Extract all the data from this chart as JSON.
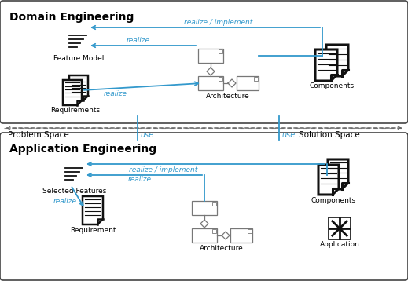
{
  "blue": "#3399cc",
  "dark": "#111111",
  "gray": "#666666",
  "border": "#444444",
  "arch_color": "#777777",
  "domain_title": "Domain Engineering",
  "app_title": "Application Engineering",
  "problem_space": "Problem Space",
  "solution_space": "Solution Space",
  "feature_model_label": "Feature Model",
  "requirements_label": "Requirements",
  "arch_label_top": "Architecture",
  "components_label_top": "Components",
  "selected_features_label": "Selected Features",
  "requirement_label": "Requirement",
  "arch_label_bot": "Architecture",
  "components_label_bot": "Components",
  "application_label": "Application",
  "realize_implement": "realize / implement",
  "realize": "realize",
  "use": "use",
  "figw": 5.19,
  "figh": 3.58,
  "dpi": 100
}
